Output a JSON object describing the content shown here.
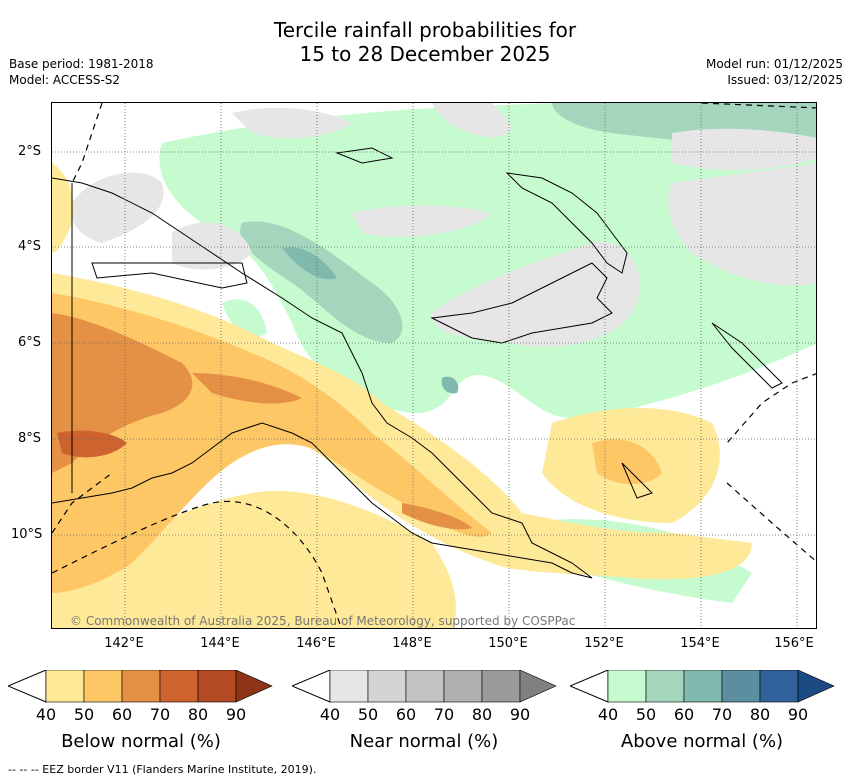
{
  "title_line1": "Tercile rainfall probabilities for",
  "title_line2": "15 to 28 December 2025",
  "meta_left": [
    "Base period: 1981-2018",
    "Model: ACCESS-S2"
  ],
  "meta_right": [
    "Model run: 01/12/2025",
    "Issued: 03/12/2025"
  ],
  "lat_labels": [
    "2°S",
    "4°S",
    "6°S",
    "8°S",
    "10°S"
  ],
  "lon_labels": [
    "142°E",
    "144°E",
    "146°E",
    "148°E",
    "150°E",
    "152°E",
    "154°E",
    "156°E"
  ],
  "credit": "© Commonwealth of Australia 2025, Bureau of Meteorology, supported by COSPPac",
  "legends": [
    {
      "title": "Below normal (%)",
      "colors": [
        "#fee999",
        "#fdc766",
        "#e59145",
        "#cf6330",
        "#b24a24",
        "#8c3318"
      ]
    },
    {
      "title": "Near normal (%)",
      "colors": [
        "#e6e6e6",
        "#d4d4d4",
        "#c3c3c3",
        "#b0b0b0",
        "#9b9b9b",
        "#808080"
      ]
    },
    {
      "title": "Above normal (%)",
      "colors": [
        "#c6fbd0",
        "#a3d6bc",
        "#80b9ad",
        "#5b8fa0",
        "#31619a",
        "#1b4b82"
      ]
    }
  ],
  "legend_ticks": [
    "40",
    "50",
    "60",
    "70",
    "80",
    "90"
  ],
  "footer": "--  --  -- EEZ border V11 (Flanders Marine Institute, 2019)."
}
